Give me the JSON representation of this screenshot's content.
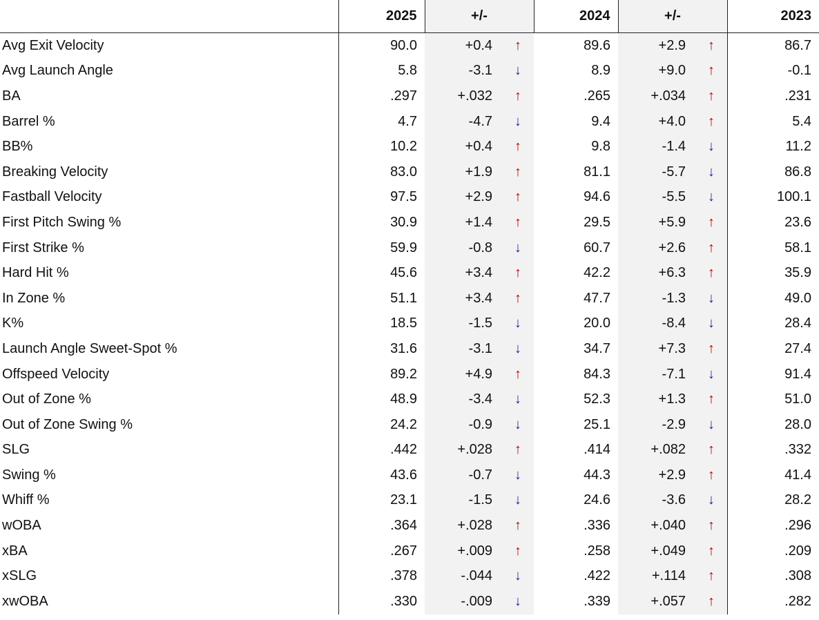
{
  "table": {
    "header": [
      "2025",
      "+/-",
      "2024",
      "+/-",
      "2023"
    ],
    "rows": [
      [
        "Avg Exit Velocity",
        "90.0",
        "+0.4",
        "↑",
        "89.6",
        "+2.9",
        "↑",
        "86.7"
      ],
      [
        "Avg Launch Angle",
        "5.8",
        "-3.1",
        "↓",
        "8.9",
        "+9.0",
        "↑",
        "-0.1"
      ],
      [
        "BA",
        ".297",
        "+.032",
        "↑",
        ".265",
        "+.034",
        "↑",
        ".231"
      ],
      [
        "Barrel %",
        "4.7",
        "-4.7",
        "↓",
        "9.4",
        "+4.0",
        "↑",
        "5.4"
      ],
      [
        "BB%",
        "10.2",
        "+0.4",
        "↑",
        "9.8",
        "-1.4",
        "↓",
        "11.2"
      ],
      [
        "Breaking Velocity",
        "83.0",
        "+1.9",
        "↑",
        "81.1",
        "-5.7",
        "↓",
        "86.8"
      ],
      [
        "Fastball Velocity",
        "97.5",
        "+2.9",
        "↑",
        "94.6",
        "-5.5",
        "↓",
        "100.1"
      ],
      [
        "First Pitch Swing %",
        "30.9",
        "+1.4",
        "↑",
        "29.5",
        "+5.9",
        "↑",
        "23.6"
      ],
      [
        "First Strike %",
        "59.9",
        "-0.8",
        "↓",
        "60.7",
        "+2.6",
        "↑",
        "58.1"
      ],
      [
        "Hard Hit %",
        "45.6",
        "+3.4",
        "↑",
        "42.2",
        "+6.3",
        "↑",
        "35.9"
      ],
      [
        "In Zone %",
        "51.1",
        "+3.4",
        "↑",
        "47.7",
        "-1.3",
        "↓",
        "49.0"
      ],
      [
        "K%",
        "18.5",
        "-1.5",
        "↓",
        "20.0",
        "-8.4",
        "↓",
        "28.4"
      ],
      [
        "Launch Angle Sweet-Spot %",
        "31.6",
        "-3.1",
        "↓",
        "34.7",
        "+7.3",
        "↑",
        "27.4"
      ],
      [
        "Offspeed Velocity",
        "89.2",
        "+4.9",
        "↑",
        "84.3",
        "-7.1",
        "↓",
        "91.4"
      ],
      [
        "Out of Zone %",
        "48.9",
        "-3.4",
        "↓",
        "52.3",
        "+1.3",
        "↑",
        "51.0"
      ],
      [
        "Out of Zone Swing %",
        "24.2",
        "-0.9",
        "↓",
        "25.1",
        "-2.9",
        "↓",
        "28.0"
      ],
      [
        "SLG",
        ".442",
        "+.028",
        "↑",
        ".414",
        "+.082",
        "↑",
        ".332"
      ],
      [
        "Swing %",
        "43.6",
        "-0.7",
        "↓",
        "44.3",
        "+2.9",
        "↑",
        "41.4"
      ],
      [
        "Whiff %",
        "23.1",
        "-1.5",
        "↓",
        "24.6",
        "-3.6",
        "↓",
        "28.2"
      ],
      [
        "wOBA",
        ".364",
        "+.028",
        "↑",
        ".336",
        "+.040",
        "↑",
        ".296"
      ],
      [
        "xBA",
        ".267",
        "+.009",
        "↑",
        ".258",
        "+.049",
        "↑",
        ".209"
      ],
      [
        "xSLG",
        ".378",
        "-.044",
        "↓",
        ".422",
        "+.114",
        "↑",
        ".308"
      ],
      [
        "xwOBA",
        ".330",
        "-.009",
        "↓",
        ".339",
        "+.057",
        "↑",
        ".282"
      ]
    ]
  }
}
